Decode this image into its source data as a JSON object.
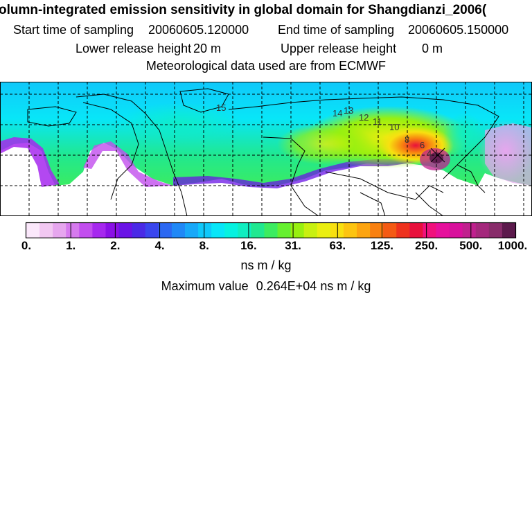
{
  "header": {
    "title": "olumn-integrated emission sensitivity in global domain for Shangdianzi_2006(",
    "start_label": "Start time of sampling",
    "start_value": "20060605.120000",
    "end_label": "End time of sampling",
    "end_value": "20060605.150000",
    "lower_label": "Lower release height",
    "lower_value": "20 m",
    "upper_label": "Upper release height",
    "upper_value": "0 m",
    "met_line": "Meteorological data used are from ECMWF"
  },
  "chart_data": {
    "type": "heatmap",
    "colorbar": {
      "tick_labels": [
        "0.",
        "1.",
        "2.",
        "4.",
        "8.",
        "16.",
        "31.",
        "63.",
        "125.",
        "250.",
        "500.",
        "1000."
      ],
      "unit": "ns m / kg",
      "colors": [
        "#fbe8fb",
        "#f2c8f2",
        "#e6a6ee",
        "#d67aee",
        "#c24eee",
        "#a628ee",
        "#8a10e6",
        "#6a14e6",
        "#4a2ae6",
        "#3a46ee",
        "#2c68f2",
        "#2088f6",
        "#18a8f8",
        "#10c8fa",
        "#08e6f8",
        "#06f2e0",
        "#10eec0",
        "#20e890",
        "#3cec60",
        "#66f030",
        "#98f010",
        "#c8f010",
        "#eaee10",
        "#f8e010",
        "#fcc410",
        "#fca410",
        "#f88010",
        "#f45a14",
        "#ee321e",
        "#e8103c",
        "#f0107c",
        "#e6109c",
        "#d8109c",
        "#c0208e",
        "#a4287c",
        "#882c6a",
        "#5c1a4c"
      ]
    },
    "contour_labels": [
      "15",
      "14",
      "13",
      "12",
      "11",
      "10",
      "8",
      "6",
      "4"
    ],
    "max_label": "Maximum value",
    "max_value": "0.264E+04",
    "max_unit": "ns m / kg"
  }
}
